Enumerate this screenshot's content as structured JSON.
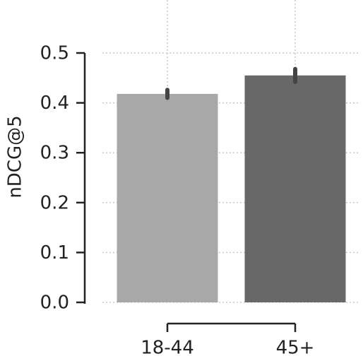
{
  "chart_data": {
    "type": "bar",
    "y_label": "nDCG@5",
    "categories": [
      "18-44",
      "45+"
    ],
    "series": [
      {
        "values": [
          0.418,
          0.455
        ],
        "errors": [
          0.008,
          0.013
        ],
        "colors": [
          "#a8a8a8",
          "#686868"
        ],
        "error_color": "#444444"
      }
    ],
    "ylim": [
      0,
      0.5
    ],
    "yticks": [
      {
        "value": 0,
        "label": "0.0"
      },
      0.1,
      0.2,
      0.3,
      0.4,
      0.5
    ],
    "grid": true
  }
}
